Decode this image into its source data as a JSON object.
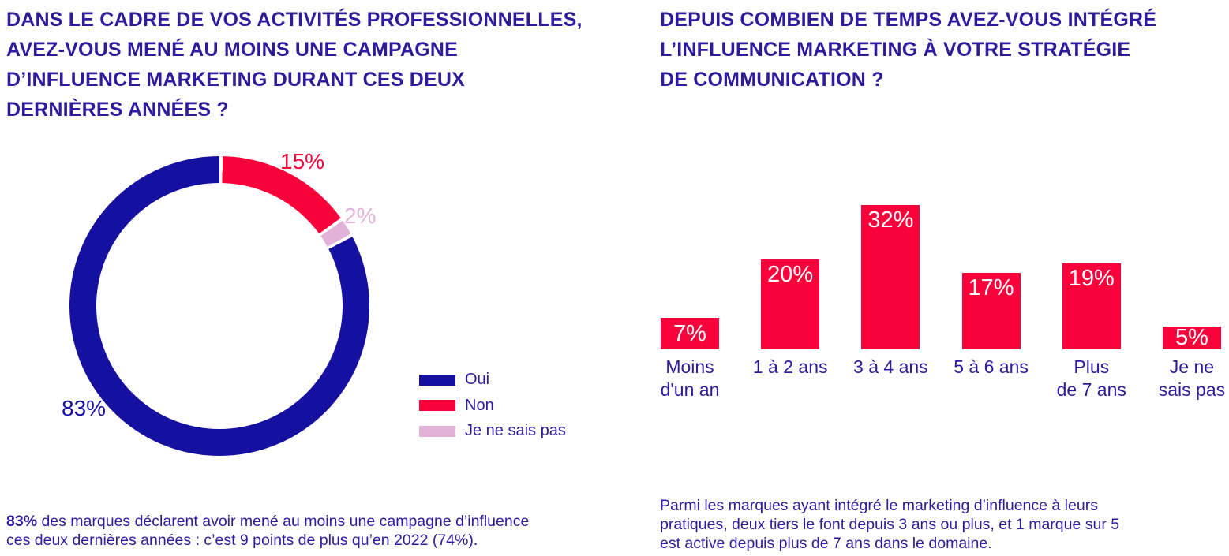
{
  "colors": {
    "indigo_text": "#2F1B9E",
    "navy": "#1510A0",
    "red": "#F9023B",
    "pink": "#E3B2D9",
    "background": "#FFFFFF",
    "bar_value_label": "#FFFFFF"
  },
  "left_panel": {
    "title": "DANS LE CADRE DE VOS ACTIVITÉS PROFESSIONNELLES,\nAVEZ-VOUS MENÉ AU MOINS UNE CAMPAGNE\nD’INFLUENCE MARKETING DURANT CES DEUX\nDERNIÈRES ANNÉES ?",
    "caption_bold": "83%",
    "caption_rest": " des marques déclarent avoir mené au moins une campagne d’influence\nces deux dernières années : c’est 9 points de plus qu’en 2022 (74%)."
  },
  "right_panel": {
    "title": "DEPUIS COMBIEN DE TEMPS AVEZ-VOUS INTÉGRÉ\nL’INFLUENCE MARKETING À VOTRE STRATÉGIE\nDE COMMUNICATION ?",
    "caption": "Parmi les marques ayant intégré le marketing d’influence à leurs\npratiques, deux tiers le font depuis 3 ans ou plus, et 1 marque sur 5\nest active depuis plus de 7 ans dans le domaine."
  },
  "chart_data": [
    {
      "type": "pie",
      "subtype": "donut",
      "title": "Dans le cadre de vos activités professionnelles, avez-vous mené au moins une campagne d’influence marketing durant ces deux dernières années ?",
      "start_angle_deg": 0,
      "direction": "clockwise",
      "slices": [
        {
          "label": "Non",
          "value": 15,
          "data_label": "15%",
          "color": "#F9023B"
        },
        {
          "label": "Je ne sais pas",
          "value": 2,
          "data_label": "2%",
          "color": "#E3B2D9"
        },
        {
          "label": "Oui",
          "value": 83,
          "data_label": "83%",
          "color": "#1510A0"
        }
      ],
      "legend_position": "right",
      "legend": [
        {
          "label": "Oui",
          "color": "#1510A0"
        },
        {
          "label": "Non",
          "color": "#F9023B"
        },
        {
          "label": "Je ne sais pas",
          "color": "#E3B2D9"
        }
      ]
    },
    {
      "type": "bar",
      "title": "Depuis combien de temps avez-vous intégré l’influence marketing à votre stratégie de communication ?",
      "categories": [
        "Moins\nd'un an",
        "1 à 2 ans",
        "3 à 4 ans",
        "5 à 6 ans",
        "Plus\nde 7 ans",
        "Je ne\nsais pas"
      ],
      "values": [
        7,
        20,
        32,
        17,
        19,
        5
      ],
      "value_labels": [
        "7%",
        "20%",
        "32%",
        "17%",
        "19%",
        "5%"
      ],
      "bar_color": "#F9023B",
      "xlabel": "",
      "ylabel": "",
      "ylim": [
        0,
        35
      ],
      "grid": false,
      "value_label_position": "inside-top"
    }
  ]
}
